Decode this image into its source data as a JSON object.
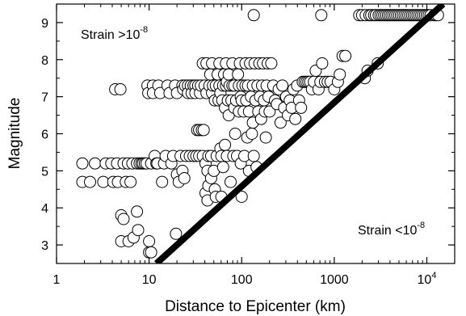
{
  "chart_data": {
    "type": "scatter",
    "xlabel": "Distance to Epicenter (km)",
    "ylabel": "Magnitude",
    "xscale": "log",
    "xlim": [
      1,
      20000
    ],
    "ylim": [
      2.5,
      9.5
    ],
    "grid": false,
    "x_ticks": [
      {
        "value": 1,
        "label": "1"
      },
      {
        "value": 10,
        "label": "10"
      },
      {
        "value": 100,
        "label": "100"
      },
      {
        "value": 1000,
        "label": "1000"
      },
      {
        "value": 10000,
        "label": "10",
        "sup": "4"
      }
    ],
    "y_ticks": [
      {
        "value": 3,
        "label": "3"
      },
      {
        "value": 4,
        "label": "4"
      },
      {
        "value": 5,
        "label": "5"
      },
      {
        "value": 6,
        "label": "6"
      },
      {
        "value": 7,
        "label": "7"
      },
      {
        "value": 8,
        "label": "8"
      },
      {
        "value": 9,
        "label": "9"
      }
    ],
    "annotations": [
      {
        "text": "Strain >10",
        "sup": "-8",
        "position": "upper-left"
      },
      {
        "text": "Strain <10",
        "sup": "-8",
        "position": "lower-right"
      }
    ],
    "threshold_line": {
      "points": [
        [
          12,
          2.5
        ],
        [
          15000,
          9.5
        ]
      ],
      "color": "#000000"
    },
    "series": [
      {
        "points": [
          [
            1.9,
            5.2
          ],
          [
            1.9,
            4.7
          ],
          [
            2.3,
            4.7
          ],
          [
            2.6,
            5.2
          ],
          [
            3.2,
            4.7
          ],
          [
            3.4,
            5.2
          ],
          [
            3.9,
            5.2
          ],
          [
            4.1,
            4.7
          ],
          [
            4.3,
            7.2
          ],
          [
            4.5,
            5.2
          ],
          [
            4.6,
            4.7
          ],
          [
            4.9,
            7.2
          ],
          [
            5.0,
            3.1
          ],
          [
            5.0,
            3.8
          ],
          [
            5.3,
            3.7
          ],
          [
            5.3,
            5.2
          ],
          [
            5.6,
            4.7
          ],
          [
            5.9,
            5.2
          ],
          [
            6.0,
            3.1
          ],
          [
            6.3,
            4.7
          ],
          [
            6.6,
            5.2
          ],
          [
            6.8,
            3.2
          ],
          [
            7.4,
            5.2
          ],
          [
            7.4,
            3.9
          ],
          [
            7.6,
            3.4
          ],
          [
            7.9,
            5.2
          ],
          [
            8.3,
            5.2
          ],
          [
            8.6,
            5.2
          ],
          [
            9.0,
            5.2
          ],
          [
            9.4,
            5.2
          ],
          [
            9.6,
            7.3
          ],
          [
            9.8,
            7.1
          ],
          [
            10.0,
            3.1
          ],
          [
            10.0,
            2.8
          ],
          [
            10.5,
            5.2
          ],
          [
            10.5,
            2.8
          ],
          [
            11.0,
            7.3
          ],
          [
            11.0,
            7.1
          ],
          [
            11.5,
            5.4
          ],
          [
            12.0,
            5.2
          ],
          [
            12.3,
            5.2
          ],
          [
            12.6,
            7.3
          ],
          [
            13.2,
            7.1
          ],
          [
            13.8,
            4.7
          ],
          [
            14.5,
            5.2
          ],
          [
            15.1,
            5.4
          ],
          [
            15.8,
            7.3
          ],
          [
            16.6,
            7.1
          ],
          [
            17.4,
            5.2
          ],
          [
            18.2,
            5.4
          ],
          [
            19.1,
            7.3
          ],
          [
            19.5,
            3.3
          ],
          [
            20.0,
            4.9
          ],
          [
            20.0,
            7.1
          ],
          [
            20.9,
            4.7
          ],
          [
            21.9,
            5.4
          ],
          [
            22.9,
            7.3
          ],
          [
            22.9,
            5.0
          ],
          [
            23.4,
            7.2
          ],
          [
            24.0,
            4.8
          ],
          [
            24.5,
            7.3
          ],
          [
            25.1,
            5.4
          ],
          [
            26.3,
            7.3
          ],
          [
            26.3,
            7.1
          ],
          [
            27.5,
            5.4
          ],
          [
            28.2,
            7.3
          ],
          [
            28.8,
            7.1
          ],
          [
            30.2,
            7.3
          ],
          [
            30.2,
            5.4
          ],
          [
            31.6,
            7.3
          ],
          [
            31.6,
            7.1
          ],
          [
            32.4,
            5.4
          ],
          [
            33.1,
            6.1
          ],
          [
            33.9,
            7.3
          ],
          [
            34.7,
            6.1
          ],
          [
            34.7,
            5.4
          ],
          [
            35.5,
            7.1
          ],
          [
            36.3,
            7.3
          ],
          [
            37.2,
            6.1
          ],
          [
            38.0,
            7.9
          ],
          [
            38.0,
            5.4
          ],
          [
            38.9,
            6.1
          ],
          [
            39.8,
            7.3
          ],
          [
            40.7,
            5.2
          ],
          [
            40.7,
            4.4
          ],
          [
            41.7,
            7.9
          ],
          [
            41.7,
            7.1
          ],
          [
            42.7,
            5.0
          ],
          [
            42.7,
            4.2
          ],
          [
            43.7,
            5.4
          ],
          [
            43.7,
            4.6
          ],
          [
            44.7,
            7.3
          ],
          [
            45.7,
            7.6
          ],
          [
            46.8,
            5.4
          ],
          [
            46.8,
            4.8
          ],
          [
            47.9,
            7.9
          ],
          [
            47.9,
            7.1
          ],
          [
            49.0,
            7.3
          ],
          [
            50.1,
            5.0
          ],
          [
            51.3,
            6.9
          ],
          [
            51.3,
            4.5
          ],
          [
            52.5,
            7.3
          ],
          [
            52.5,
            4.3
          ],
          [
            53.7,
            5.4
          ],
          [
            55.0,
            7.6
          ],
          [
            56.2,
            6.9
          ],
          [
            57.5,
            7.9
          ],
          [
            57.5,
            7.3
          ],
          [
            58.9,
            7.1
          ],
          [
            58.9,
            5.6
          ],
          [
            60.3,
            5.4
          ],
          [
            60.3,
            4.3
          ],
          [
            61.7,
            6.9
          ],
          [
            63.1,
            7.3
          ],
          [
            63.1,
            5.1
          ],
          [
            64.6,
            7.6
          ],
          [
            66.1,
            6.7
          ],
          [
            66.1,
            5.7
          ],
          [
            67.6,
            7.9
          ],
          [
            67.6,
            7.3
          ],
          [
            69.2,
            7.4
          ],
          [
            69.2,
            5.4
          ],
          [
            70.8,
            6.9
          ],
          [
            72.4,
            7.6
          ],
          [
            72.4,
            6.5
          ],
          [
            74.1,
            7.3
          ],
          [
            75.9,
            4.7
          ],
          [
            77.6,
            6.9
          ],
          [
            79.4,
            7.9
          ],
          [
            79.4,
            7.3
          ],
          [
            81.3,
            5.4
          ],
          [
            83.2,
            7.3
          ],
          [
            83.2,
            6.7
          ],
          [
            85.1,
            6.0
          ],
          [
            87.1,
            6.9
          ],
          [
            89.1,
            5.4
          ],
          [
            91.2,
            7.6
          ],
          [
            93.3,
            7.3
          ],
          [
            93.3,
            6.6
          ],
          [
            95.5,
            7.9
          ],
          [
            97.7,
            7.0
          ],
          [
            97.7,
            5.2
          ],
          [
            100,
            6.9
          ],
          [
            100,
            4.3
          ],
          [
            102,
            7.3
          ],
          [
            105,
            6.6
          ],
          [
            107,
            5.4
          ],
          [
            110,
            7.9
          ],
          [
            110,
            7.3
          ],
          [
            112,
            6.9
          ],
          [
            115,
            5.9
          ],
          [
            117,
            7.3
          ],
          [
            120,
            6.6
          ],
          [
            120,
            5.0
          ],
          [
            123,
            7.9
          ],
          [
            126,
            7.0
          ],
          [
            129,
            6.0
          ],
          [
            132,
            7.3
          ],
          [
            132,
            6.3
          ],
          [
            135,
            5.4
          ],
          [
            135,
            9.2
          ],
          [
            138,
            7.9
          ],
          [
            141,
            6.9
          ],
          [
            145,
            5.1
          ],
          [
            148,
            7.3
          ],
          [
            151,
            6.6
          ],
          [
            155,
            7.9
          ],
          [
            158,
            7.0
          ],
          [
            162,
            6.4
          ],
          [
            166,
            7.3
          ],
          [
            170,
            7.9
          ],
          [
            174,
            6.9
          ],
          [
            178,
            6.6
          ],
          [
            182,
            5.9
          ],
          [
            186,
            7.3
          ],
          [
            191,
            7.9
          ],
          [
            195,
            7.0
          ],
          [
            200,
            6.6
          ],
          [
            209,
            7.9
          ],
          [
            219,
            7.3
          ],
          [
            229,
            6.9
          ],
          [
            240,
            6.8
          ],
          [
            251,
            7.2
          ],
          [
            263,
            6.3
          ],
          [
            275,
            7.3
          ],
          [
            288,
            6.7
          ],
          [
            302,
            7.0
          ],
          [
            316,
            6.5
          ],
          [
            331,
            6.9
          ],
          [
            347,
            6.7
          ],
          [
            363,
            7.2
          ],
          [
            380,
            6.4
          ],
          [
            398,
            7.3
          ],
          [
            417,
            6.9
          ],
          [
            437,
            6.7
          ],
          [
            457,
            7.4
          ],
          [
            479,
            7.4
          ],
          [
            501,
            7.4
          ],
          [
            525,
            7.4
          ],
          [
            550,
            7.4
          ],
          [
            575,
            7.2
          ],
          [
            603,
            7.4
          ],
          [
            631,
            7.7
          ],
          [
            676,
            7.2
          ],
          [
            708,
            7.4
          ],
          [
            724,
            9.2
          ],
          [
            741,
            7.9
          ],
          [
            794,
            7.4
          ],
          [
            851,
            7.4
          ],
          [
            912,
            7.4
          ],
          [
            1000,
            7.2
          ],
          [
            1096,
            7.4
          ],
          [
            1148,
            7.6
          ],
          [
            1230,
            8.1
          ],
          [
            1318,
            8.1
          ],
          [
            1862,
            9.2
          ],
          [
            1995,
            9.2
          ],
          [
            2138,
            7.5
          ],
          [
            2188,
            9.2
          ],
          [
            2291,
            7.7
          ],
          [
            2399,
            9.2
          ],
          [
            2512,
            9.2
          ],
          [
            2692,
            9.2
          ],
          [
            2818,
            9.2
          ],
          [
            2951,
            7.9
          ],
          [
            3020,
            9.2
          ],
          [
            3162,
            9.2
          ],
          [
            3311,
            9.2
          ],
          [
            3467,
            9.2
          ],
          [
            3631,
            9.2
          ],
          [
            3802,
            9.2
          ],
          [
            3981,
            9.2
          ],
          [
            4169,
            9.2
          ],
          [
            4365,
            9.2
          ],
          [
            4571,
            9.2
          ],
          [
            4786,
            9.2
          ],
          [
            5012,
            9.2
          ],
          [
            5248,
            9.2
          ],
          [
            5495,
            9.2
          ],
          [
            5754,
            9.2
          ],
          [
            6026,
            9.2
          ],
          [
            6310,
            9.2
          ],
          [
            6607,
            9.2
          ],
          [
            6918,
            9.2
          ],
          [
            7244,
            9.2
          ],
          [
            7586,
            9.2
          ],
          [
            7943,
            9.2
          ],
          [
            8318,
            9.2
          ],
          [
            8710,
            9.2
          ],
          [
            9120,
            9.2
          ],
          [
            9550,
            9.2
          ],
          [
            10000,
            9.2
          ],
          [
            10471,
            9.2
          ],
          [
            10965,
            9.2
          ],
          [
            12023,
            9.2
          ],
          [
            12589,
            9.2
          ],
          [
            13183,
            9.2
          ]
        ]
      }
    ]
  }
}
